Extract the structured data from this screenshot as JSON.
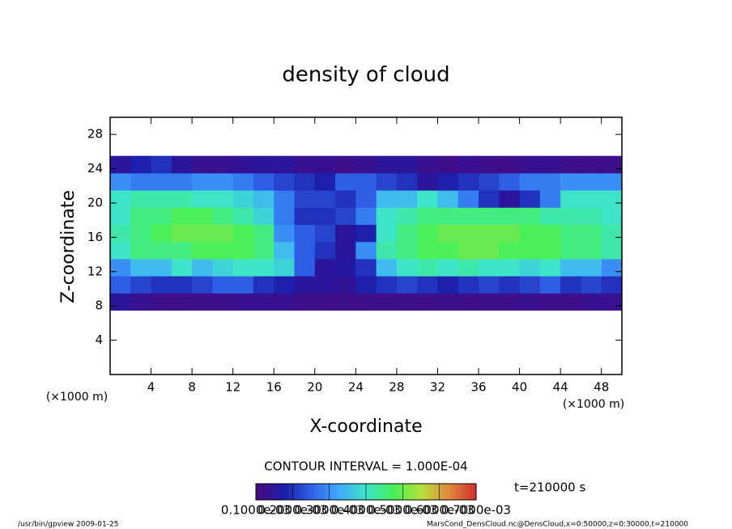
{
  "chart_data": {
    "type": "heatmap",
    "title": "density of cloud",
    "xlabel": "X-coordinate",
    "ylabel": "Z-coordinate",
    "x_unit": "(×1000 m)",
    "y_unit": "(×1000 m)",
    "contour_interval": "CONTOUR INTERVAL = 1.000E-04",
    "time_label": "t=210000 s",
    "footer_left": "/usr/bin/gpview  2009-01-25",
    "footer_right": "MarsCond_DensCloud.nc@DensCloud,x=0:50000,z=0:30000,t=210000",
    "xlim": [
      0,
      50
    ],
    "ylim": [
      0,
      30
    ],
    "xticks": [
      4,
      8,
      12,
      16,
      20,
      24,
      28,
      32,
      36,
      40,
      44,
      48
    ],
    "yticks": [
      4,
      8,
      12,
      16,
      20,
      24,
      28
    ],
    "x": [
      1,
      3,
      5,
      7,
      9,
      11,
      13,
      15,
      17,
      19,
      21,
      23,
      25,
      27,
      29,
      31,
      33,
      35,
      37,
      39,
      41,
      43,
      45,
      47,
      49
    ],
    "z": [
      8.5,
      10.5,
      12.5,
      14.5,
      16.5,
      18.5,
      20.5,
      22.5,
      24.5
    ],
    "values": [
      [
        0.00015,
        0.00013,
        0.00012,
        0.00012,
        0.00012,
        0.00012,
        0.00013,
        0.00013,
        0.00013,
        0.00012,
        0.00012,
        0.00012,
        0.00012,
        0.00012,
        0.00012,
        0.00012,
        0.00012,
        0.00012,
        0.00012,
        0.00012,
        0.00013,
        0.00012,
        0.00012,
        0.00013,
        0.00013
      ],
      [
        0.00025,
        0.00022,
        0.0002,
        0.0002,
        0.00022,
        0.00025,
        0.00025,
        0.0002,
        0.00018,
        0.00015,
        0.00015,
        0.00014,
        0.00018,
        0.0002,
        0.00022,
        0.0002,
        0.00018,
        0.0002,
        0.00022,
        0.0002,
        0.00022,
        0.00025,
        0.0002,
        0.00022,
        0.0002
      ],
      [
        0.0003,
        0.00035,
        0.00035,
        0.0004,
        0.00035,
        0.00038,
        0.0004,
        0.0004,
        0.00038,
        0.00025,
        0.00015,
        0.00016,
        0.0002,
        0.00035,
        0.0004,
        0.00042,
        0.0004,
        0.00042,
        0.0004,
        0.0004,
        0.00038,
        0.0004,
        0.00035,
        0.00035,
        0.0003
      ],
      [
        0.0004,
        0.00045,
        0.00045,
        0.00045,
        0.00048,
        0.00048,
        0.00048,
        0.00045,
        0.00035,
        0.00025,
        0.0002,
        0.00015,
        0.0003,
        0.00042,
        0.00045,
        0.00048,
        0.00048,
        0.0005,
        0.0005,
        0.00048,
        0.00048,
        0.00048,
        0.00045,
        0.00045,
        0.00042
      ],
      [
        0.00042,
        0.00045,
        0.00048,
        0.0005,
        0.0005,
        0.0005,
        0.00048,
        0.00045,
        0.0003,
        0.00025,
        0.00022,
        0.00015,
        0.00018,
        0.0004,
        0.00045,
        0.00048,
        0.0005,
        0.0005,
        0.0005,
        0.0005,
        0.00048,
        0.00048,
        0.00045,
        0.00045,
        0.00042
      ],
      [
        0.0004,
        0.00045,
        0.00045,
        0.00048,
        0.00048,
        0.00045,
        0.00042,
        0.00038,
        0.00028,
        0.0002,
        0.0002,
        0.00022,
        0.00028,
        0.0004,
        0.00042,
        0.00045,
        0.00045,
        0.00045,
        0.00045,
        0.00045,
        0.00045,
        0.00042,
        0.00042,
        0.00042,
        0.0004
      ],
      [
        0.0004,
        0.00042,
        0.00042,
        0.00042,
        0.0004,
        0.0004,
        0.00038,
        0.00035,
        0.00028,
        0.00022,
        0.00022,
        0.0002,
        0.00025,
        0.00035,
        0.00035,
        0.0004,
        0.00035,
        0.00028,
        0.0002,
        0.00015,
        0.0002,
        0.00028,
        0.0004,
        0.0004,
        0.0004
      ],
      [
        0.0003,
        0.00028,
        0.00028,
        0.00028,
        0.0003,
        0.0003,
        0.00028,
        0.00025,
        0.00022,
        0.0002,
        0.00018,
        0.00025,
        0.00025,
        0.00022,
        0.0002,
        0.00015,
        0.00018,
        0.0002,
        0.00022,
        0.00025,
        0.00028,
        0.00028,
        0.0003,
        0.0003,
        0.0003
      ],
      [
        0.00015,
        0.00018,
        0.0002,
        0.00015,
        0.00013,
        0.00013,
        0.00014,
        0.00015,
        0.00015,
        0.00013,
        0.00013,
        0.00012,
        0.00013,
        0.00015,
        0.00015,
        0.00013,
        0.00012,
        0.00013,
        0.00012,
        0.00012,
        0.00013,
        0.00013,
        0.00012,
        0.00012,
        0.00012
      ]
    ],
    "clim": [
      0.0001,
      0.0007
    ],
    "cticks": [
      {
        "value": 0.0001,
        "label": "0.1000e-03"
      },
      {
        "value": 0.0002,
        "label": "0.2000e-03"
      },
      {
        "value": 0.0003,
        "label": "0.3000e-03"
      },
      {
        "value": 0.0004,
        "label": "0.4000e-03"
      },
      {
        "value": 0.0005,
        "label": "0.5000e-03"
      },
      {
        "value": 0.0006,
        "label": "0.6000e-03"
      },
      {
        "value": 0.0007,
        "label": "0.7000e-03"
      }
    ],
    "colormap": [
      "#4a0a80",
      "#1c1ca8",
      "#2f5ee6",
      "#3fa8ff",
      "#3ee4c8",
      "#44f05a",
      "#b4e23c",
      "#e08a3c",
      "#d23030"
    ]
  }
}
